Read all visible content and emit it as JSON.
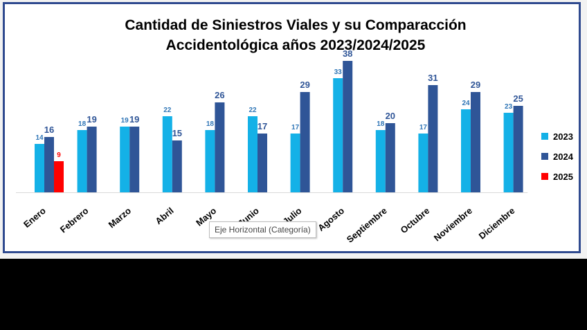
{
  "chart_data": {
    "type": "bar",
    "title_lines": [
      "Cantidad de Siniestros Viales y su Comparacción",
      "Accidentológica años 2023/2024/2025"
    ],
    "categories": [
      "Enero",
      "Febrero",
      "Marzo",
      "Abril",
      "Mayo",
      "Junio",
      "Julio",
      "Agosto",
      "Septiembre",
      "Octubre",
      "Noviembre",
      "Diciembre"
    ],
    "series": [
      {
        "name": "2023",
        "color": "#14b1e7",
        "label_color": "#2e75b6",
        "values": [
          14,
          18,
          19,
          22,
          18,
          22,
          17,
          33,
          18,
          17,
          24,
          23
        ]
      },
      {
        "name": "2024",
        "color": "#2f5597",
        "label_color": "#2f5597",
        "values": [
          16,
          19,
          19,
          15,
          26,
          17,
          29,
          38,
          20,
          31,
          29,
          25
        ]
      },
      {
        "name": "2025",
        "color": "#ff0000",
        "label_color": "#ff0000",
        "values": [
          9,
          null,
          null,
          null,
          null,
          null,
          null,
          null,
          null,
          null,
          null,
          null
        ]
      }
    ],
    "ylim": [
      0,
      40
    ],
    "grid": false,
    "legend_position": "right",
    "xlabel": "",
    "ylabel": ""
  },
  "tooltip": "Eje Horizontal (Categoría)"
}
